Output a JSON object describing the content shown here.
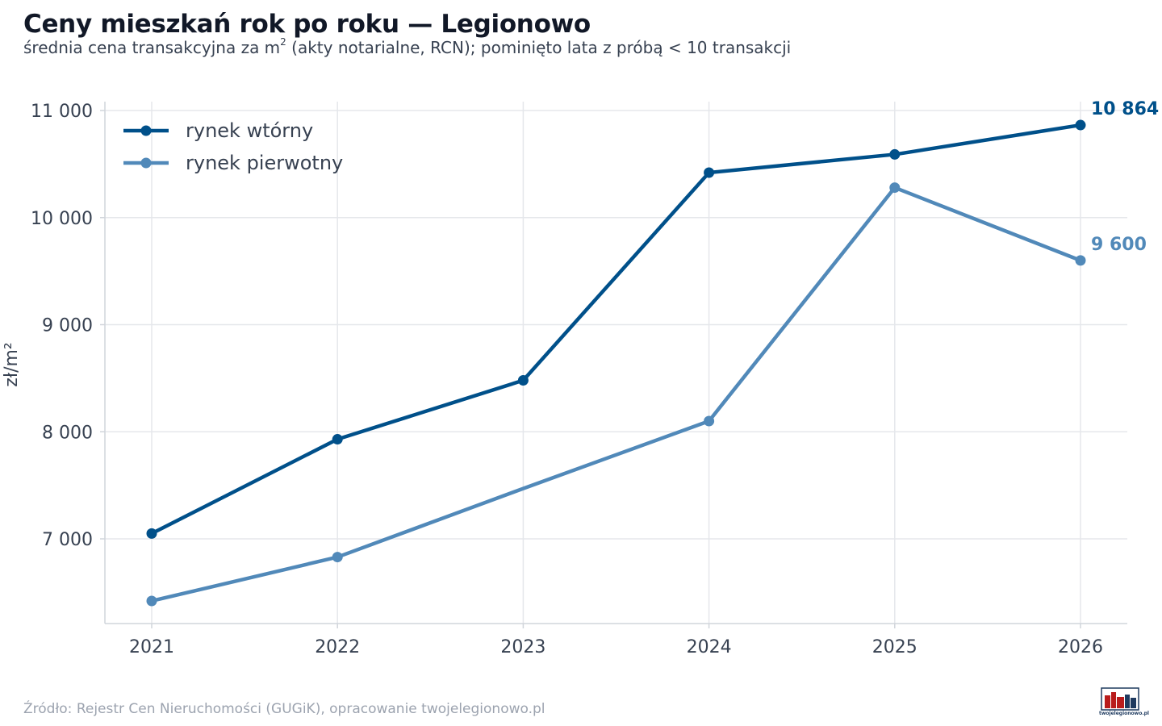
{
  "title": "Ceny mieszkań rok po roku — Legionowo",
  "subtitle_before": "średnia cena transakcyjna za m",
  "subtitle_sup": "2",
  "subtitle_after": " (akty notarialne, RCN); pominięto lata z próbą < 10 transakcji",
  "source": "Źródło: Rejestr Cen Nieruchomości (GUGiK), opracowanie twojelegionowo.pl",
  "logo_text": "twojelegionowo.pl",
  "chart_data": {
    "type": "line",
    "x": [
      "2021",
      "2022",
      "2023",
      "2024",
      "2025",
      "2026"
    ],
    "ylabel": "zł/m²",
    "ylim": [
      6200,
      11100
    ],
    "yticks": [
      7000,
      8000,
      9000,
      10000,
      11000
    ],
    "ytick_labels": [
      "7 000",
      "8 000",
      "9 000",
      "10 000",
      "11 000"
    ],
    "grid": true,
    "legend": "top-left",
    "series": [
      {
        "name": "rynek wtórny",
        "color": "#00508a",
        "values": [
          7050,
          7930,
          8480,
          10420,
          10590,
          10864
        ],
        "markers": [
          true,
          true,
          true,
          true,
          true,
          true
        ],
        "end_label": "10 864"
      },
      {
        "name": "rynek pierwotny",
        "color": "#5189b9",
        "values": [
          6420,
          6830,
          7470,
          8100,
          10280,
          9600
        ],
        "markers": [
          true,
          true,
          false,
          true,
          true,
          true
        ],
        "end_label": "9 600"
      }
    ]
  }
}
